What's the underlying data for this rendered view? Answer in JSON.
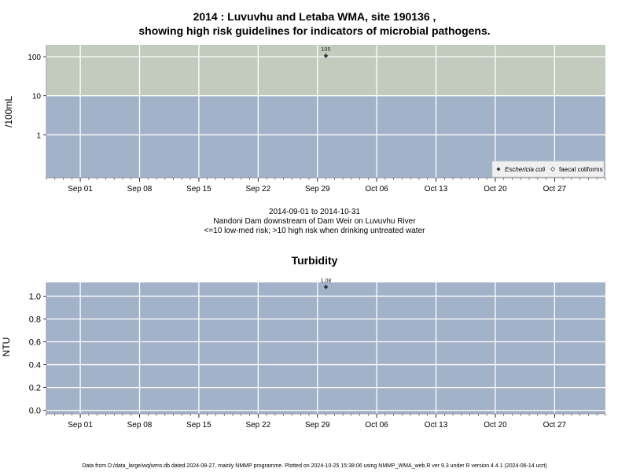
{
  "chart1": {
    "title_line1": "2014 : Luvuvhu and Letaba WMA, site 190136 ,",
    "title_line2": "showing high risk guidelines for indicators of microbial pathogens.",
    "ylabel": "/100mL",
    "legend": [
      {
        "marker": "filled-diamond",
        "label": "Eschericia coli",
        "italic": true
      },
      {
        "marker": "open-diamond",
        "label": "faecal coliforms",
        "italic": false
      }
    ],
    "subtitle_line1": "2014-09-01 to 2014-10-31",
    "subtitle_line2": "Nandoni Dam downstream of Dam Weir on Luvuvhu River",
    "subtitle_line3": "<=10 low-med risk; >10 high risk when drinking untreated water"
  },
  "chart2": {
    "title": "Turbidity",
    "ylabel": "NTU"
  },
  "footer": "Data from D:/data_large/wq/wms.db dated 2024-08-27, mainly NMMP programme. Plotted on 2024-10-25 15:38:06 using NMMP_WMA_web.R ver 9.3 under R version 4.4.1 (2024-06-14 ucrt)",
  "colors": {
    "low_risk_band": "#a2b2c9",
    "high_risk_band": "#c3cbbf",
    "plot_background": "#a2b2c9",
    "grid": "#ffffff",
    "point": "#333333"
  },
  "chart_data": [
    {
      "type": "scatter",
      "title": "2014 : Luvuvhu and Letaba WMA, site 190136 , showing high risk guidelines for indicators of microbial pathogens.",
      "ylabel": "/100mL",
      "yscale": "log",
      "ylim": [
        0.08,
        200
      ],
      "yticks": [
        1,
        10,
        100
      ],
      "ytick_labels": [
        "1",
        "10",
        "100"
      ],
      "xlim": [
        "2014-08-28",
        "2014-11-02"
      ],
      "xticks": [
        "2014-09-01",
        "2014-09-08",
        "2014-09-15",
        "2014-09-22",
        "2014-09-29",
        "2014-10-06",
        "2014-10-13",
        "2014-10-20",
        "2014-10-27"
      ],
      "xtick_labels": [
        "Sep 01",
        "Sep 08",
        "Sep 15",
        "Sep 22",
        "Sep 29",
        "Oct 06",
        "Oct 13",
        "Oct 20",
        "Oct 27"
      ],
      "guideline": 10,
      "grid": true,
      "legend_position": "bottom-right",
      "series": [
        {
          "name": "Eschericia coli",
          "points": [
            {
              "x": "2014-09-30",
              "y": 105,
              "label": "105"
            }
          ]
        },
        {
          "name": "faecal coliforms",
          "points": []
        }
      ]
    },
    {
      "type": "scatter",
      "title": "Turbidity",
      "ylabel": "NTU",
      "ylim": [
        -0.03,
        1.12
      ],
      "yticks": [
        0,
        0.2,
        0.4,
        0.6,
        0.8,
        1.0
      ],
      "ytick_labels": [
        "0.0",
        "0.2",
        "0.4",
        "0.6",
        "0.8",
        "1.0"
      ],
      "xlim": [
        "2014-08-28",
        "2014-11-02"
      ],
      "xticks": [
        "2014-09-01",
        "2014-09-08",
        "2014-09-15",
        "2014-09-22",
        "2014-09-29",
        "2014-10-06",
        "2014-10-13",
        "2014-10-20",
        "2014-10-27"
      ],
      "xtick_labels": [
        "Sep 01",
        "Sep 08",
        "Sep 15",
        "Sep 22",
        "Sep 29",
        "Oct 06",
        "Oct 13",
        "Oct 20",
        "Oct 27"
      ],
      "grid": true,
      "series": [
        {
          "name": "",
          "points": [
            {
              "x": "2014-09-30",
              "y": 1.08,
              "label": "1.08"
            }
          ]
        }
      ]
    }
  ]
}
